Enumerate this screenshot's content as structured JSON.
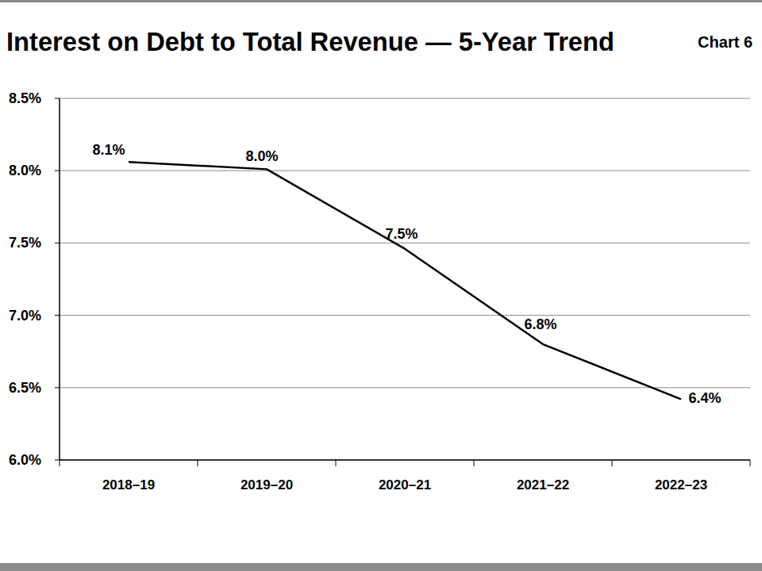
{
  "chart_data": {
    "type": "line",
    "title": "Interest on Debt to Total Revenue — 5-Year Trend",
    "annotations": [
      "Chart 6"
    ],
    "categories": [
      "2018–19",
      "2019–20",
      "2020–21",
      "2021–22",
      "2022–23"
    ],
    "values": [
      8.06,
      8.01,
      7.46,
      6.8,
      6.42
    ],
    "value_labels": [
      "8.1%",
      "8.0%",
      "7.5%",
      "6.8%",
      "6.4%"
    ],
    "color": "#000000",
    "line_style": "solid",
    "marker": "none",
    "ylim": [
      6.0,
      8.5
    ],
    "yticks": [
      {
        "value": 6.0,
        "label": "6.0%"
      },
      {
        "value": 6.5,
        "label": "6.5%"
      },
      {
        "value": 7.0,
        "label": "7.0%"
      },
      {
        "value": 7.5,
        "label": "7.5%"
      },
      {
        "value": 8.0,
        "label": "8.0%"
      },
      {
        "value": 8.5,
        "label": "8.5%"
      }
    ],
    "grid": true,
    "data_labels": true
  }
}
